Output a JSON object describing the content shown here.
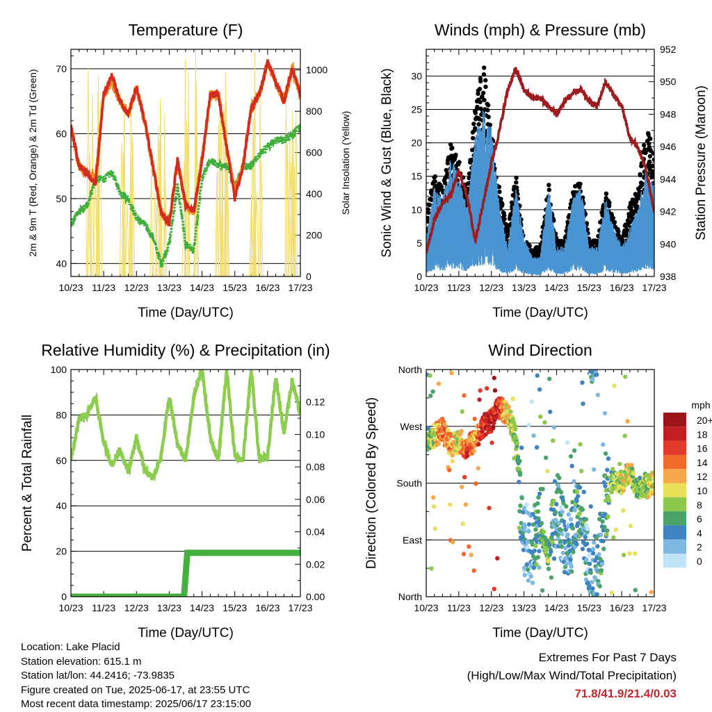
{
  "panels": {
    "temperature": {
      "title": "Temperature (F)",
      "ylabel_left": "2m & 9m T (Red, Orange) & 2m Td (Green)",
      "ylabel_right": "Solar Insolation (Yellow)",
      "xlabel": "Time (Day/UTC)",
      "left_ticks": [
        "40",
        "50",
        "60",
        "70"
      ],
      "right_ticks": [
        "0",
        "200",
        "400",
        "600",
        "800",
        "1000"
      ]
    },
    "winds": {
      "title": "Winds (mph) & Pressure (mb)",
      "ylabel_left": "Sonic Wind & Gust (Blue, Black)",
      "ylabel_right": "Station Pressure (Maroon)",
      "xlabel": "Time (Day/UTC)",
      "left_ticks": [
        "0",
        "5",
        "10",
        "15",
        "20",
        "25",
        "30"
      ],
      "right_ticks": [
        "938",
        "940",
        "942",
        "944",
        "946",
        "948",
        "950",
        "952"
      ]
    },
    "humidity": {
      "title": "Relative Humidity (%) & Precipitation (in)",
      "ylabel_left": "Percent & Total Rainfall",
      "xlabel": "Time (Day/UTC)",
      "left_ticks": [
        "0",
        "20",
        "40",
        "60",
        "80",
        "100"
      ],
      "right_ticks": [
        "0.00",
        "0.02",
        "0.04",
        "0.06",
        "0.08",
        "0.10",
        "0.12"
      ]
    },
    "direction": {
      "title": "Wind Direction",
      "ylabel_left": "Direction (Colored By Speed)",
      "xlabel": "Time (Day/UTC)",
      "left_ticks": [
        "North",
        "East",
        "South",
        "West",
        "North"
      ],
      "legend_title": "mph",
      "legend_labels": [
        "20+",
        "18",
        "16",
        "14",
        "12",
        "10",
        "8",
        "6",
        "4",
        "2",
        "0"
      ]
    }
  },
  "x_tick_labels": [
    "10/23",
    "11/23",
    "12/23",
    "13/23",
    "14/23",
    "15/23",
    "16/23",
    "17/23"
  ],
  "colors": {
    "temp_2m": "#d42a20",
    "temp_9m": "#f08a24",
    "dewpoint": "#3fae3a",
    "solar": "#f2dd6b",
    "wind": "#4a95d2",
    "gust": "#000000",
    "pressure": "#9c1c1f",
    "rh": "#8ccc4e",
    "precip": "#45b03f",
    "legend_scale": [
      "#9a1418",
      "#c41e24",
      "#e2392a",
      "#f06a2c",
      "#f8a64a",
      "#e8e058",
      "#8cc84c",
      "#4aa46a",
      "#3f84c0",
      "#7cb8e2",
      "#bfe3f7"
    ]
  },
  "info": {
    "location": "Location: Lake Placid",
    "elevation": "Station elevation: 615.1 m",
    "latlon": "Station lat/lon: 44.2416; -73.9835",
    "created": "Figure created on Tue, 2025-06-17, at 23:55 UTC",
    "recent": "Most recent data timestamp: 2025/06/17 23:15:00"
  },
  "extremes": {
    "line1": "Extremes For Past 7 Days",
    "line2": "(High/Low/Max Wind/Total Precipitation)",
    "values": "71.8/41.9/21.4/0.03"
  },
  "chart_data": [
    {
      "type": "line",
      "title": "Temperature (F)",
      "xlabel": "Time (Day/UTC)",
      "ylabel": "2m & 9m T (Red, Orange) & 2m Td (Green)",
      "ylabel_right": "Solar Insolation (Yellow)",
      "x": [
        10.0,
        10.25,
        10.5,
        10.75,
        11.0,
        11.25,
        11.5,
        11.75,
        12.0,
        12.25,
        12.5,
        12.75,
        13.0,
        13.25,
        13.5,
        13.75,
        14.0,
        14.25,
        14.5,
        14.75,
        15.0,
        15.25,
        15.5,
        15.75,
        16.0,
        16.25,
        16.5,
        16.75,
        17.0
      ],
      "ylim": [
        38,
        73
      ],
      "ylim_right": [
        0,
        1100
      ],
      "series": [
        {
          "name": "2m T",
          "values": [
            61,
            55,
            54,
            52,
            66,
            69,
            65,
            63,
            67,
            62,
            55,
            48,
            46,
            56,
            49,
            48,
            56,
            66,
            66,
            58,
            50,
            55,
            64,
            66,
            71,
            68,
            65,
            70,
            66
          ]
        },
        {
          "name": "9m T",
          "values": [
            61,
            55,
            54,
            53,
            66,
            68,
            65,
            63,
            67,
            62,
            55,
            48,
            46,
            56,
            49,
            48,
            56,
            66,
            66,
            58,
            51,
            55,
            64,
            66,
            71,
            68,
            65,
            70,
            66
          ]
        },
        {
          "name": "2m Td",
          "values": [
            46,
            48,
            49,
            53,
            53,
            54,
            51,
            50,
            47,
            46,
            44,
            40,
            43,
            52,
            43,
            42,
            53,
            56,
            55,
            55,
            52,
            55,
            55,
            57,
            58,
            59,
            59,
            60,
            61
          ]
        },
        {
          "name": "Solar Insolation",
          "axis": "right",
          "values": [
            0,
            0,
            0,
            900,
            1000,
            0,
            600,
            1000,
            0,
            1050,
            0,
            0,
            900,
            1000,
            0,
            0,
            1100,
            900,
            0,
            0,
            1000,
            0,
            0,
            1000,
            0,
            0,
            1000,
            0,
            400
          ]
        }
      ]
    },
    {
      "type": "line",
      "title": "Winds (mph) & Pressure (mb)",
      "xlabel": "Time (Day/UTC)",
      "ylabel": "Sonic Wind & Gust (Blue, Black)",
      "ylabel_right": "Station Pressure (Maroon)",
      "x": [
        10.0,
        10.25,
        10.5,
        10.75,
        11.0,
        11.25,
        11.5,
        11.75,
        12.0,
        12.25,
        12.5,
        12.75,
        13.0,
        13.25,
        13.5,
        13.75,
        14.0,
        14.25,
        14.5,
        14.75,
        15.0,
        15.25,
        15.5,
        15.75,
        16.0,
        16.25,
        16.5,
        16.75,
        17.0
      ],
      "ylim": [
        0,
        34
      ],
      "ylim_right": [
        938,
        952
      ],
      "series": [
        {
          "name": "Sonic Wind",
          "values": [
            4,
            9,
            8,
            12,
            10,
            7,
            14,
            17,
            15,
            7,
            3,
            9,
            4,
            2,
            2,
            9,
            3,
            3,
            8,
            9,
            3,
            3,
            8,
            5,
            3,
            5,
            7,
            11,
            9
          ]
        },
        {
          "name": "Gust",
          "values": [
            8,
            14,
            12,
            18,
            16,
            12,
            23,
            30,
            20,
            12,
            6,
            14,
            5,
            4,
            4,
            13,
            5,
            5,
            12,
            13,
            5,
            5,
            12,
            8,
            5,
            10,
            12,
            20,
            18
          ]
        },
        {
          "name": "Station Pressure",
          "axis": "right",
          "values": [
            939.5,
            941.5,
            942.5,
            943,
            944.5,
            943,
            940.2,
            942.5,
            945,
            947,
            949.5,
            950.8,
            949.5,
            949,
            949,
            948.5,
            948,
            948.8,
            949.3,
            949.5,
            948.8,
            948.5,
            950,
            949.2,
            948.5,
            946.5,
            946,
            944.5,
            942
          ]
        }
      ]
    },
    {
      "type": "line",
      "title": "Relative Humidity (%) & Precipitation (in)",
      "xlabel": "Time (Day/UTC)",
      "ylabel": "Percent & Total Rainfall",
      "x": [
        10.0,
        10.25,
        10.5,
        10.75,
        11.0,
        11.25,
        11.5,
        11.75,
        12.0,
        12.25,
        12.5,
        12.75,
        13.0,
        13.25,
        13.5,
        13.75,
        14.0,
        14.25,
        14.5,
        14.75,
        15.0,
        15.25,
        15.5,
        15.75,
        16.0,
        16.25,
        16.5,
        16.75,
        17.0
      ],
      "ylim": [
        0,
        100
      ],
      "ylim_right": [
        0,
        0.14
      ],
      "series": [
        {
          "name": "Relative Humidity",
          "values": [
            60,
            78,
            80,
            88,
            68,
            58,
            65,
            55,
            70,
            56,
            52,
            62,
            88,
            67,
            60,
            88,
            100,
            70,
            60,
            100,
            62,
            60,
            100,
            60,
            62,
            97,
            72,
            95,
            80
          ]
        },
        {
          "name": "Total Precipitation",
          "axis": "right",
          "values": [
            0,
            0,
            0,
            0,
            0,
            0,
            0,
            0,
            0,
            0,
            0,
            0,
            0,
            0,
            0.027,
            0.027,
            0.027,
            0.027,
            0.027,
            0.027,
            0.027,
            0.027,
            0.027,
            0.027,
            0.027,
            0.027,
            0.027,
            0.027,
            0.027
          ]
        }
      ]
    },
    {
      "type": "scatter",
      "title": "Wind Direction",
      "xlabel": "Time (Day/UTC)",
      "ylabel": "Direction (Colored By Speed)",
      "x": [
        10.0,
        10.25,
        10.5,
        10.75,
        11.0,
        11.25,
        11.5,
        11.75,
        12.0,
        12.25,
        12.5,
        12.75,
        13.0,
        13.25,
        13.5,
        13.75,
        14.0,
        14.25,
        14.5,
        14.75,
        15.0,
        15.25,
        15.5,
        15.75,
        16.0,
        16.25,
        16.5,
        16.75,
        17.0
      ],
      "ylim": [
        0,
        360
      ],
      "yticks": [
        0,
        90,
        180,
        270,
        360
      ],
      "legend_title": "mph",
      "series": [
        {
          "name": "Direction",
          "values": [
            250,
            255,
            265,
            240,
            245,
            235,
            250,
            270,
            280,
            300,
            290,
            250,
            90,
            80,
            110,
            60,
            140,
            90,
            100,
            150,
            30,
            40,
            150,
            190,
            180,
            200,
            170,
            175,
            180
          ]
        },
        {
          "name": "Speed",
          "values": [
            6,
            10,
            14,
            12,
            9,
            15,
            12,
            17,
            18,
            16,
            10,
            8,
            3,
            3,
            6,
            7,
            4,
            3,
            4,
            6,
            3,
            4,
            5,
            8,
            9,
            10,
            6,
            9,
            11
          ]
        }
      ]
    }
  ]
}
